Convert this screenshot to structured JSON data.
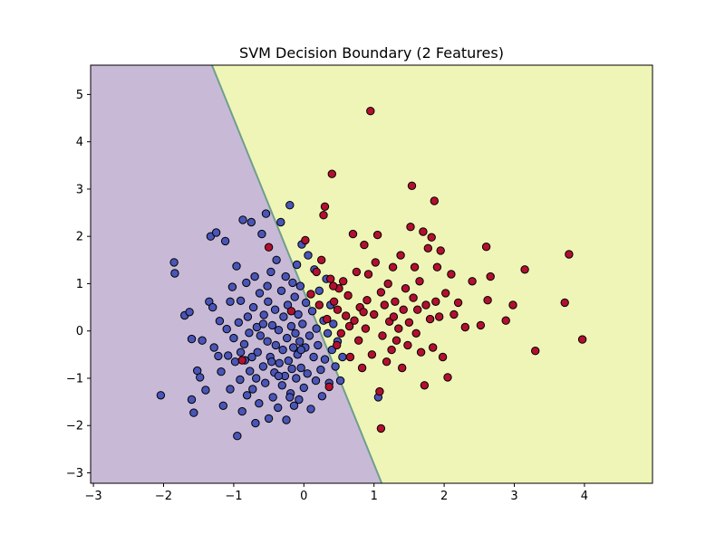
{
  "chart_data": {
    "type": "scatter",
    "title": "SVM Decision Boundary (2 Features)",
    "xlabel": "",
    "ylabel": "",
    "xlim": [
      -3.04,
      4.97
    ],
    "ylim": [
      -3.22,
      5.62
    ],
    "xticks": [
      -3,
      -2,
      -1,
      0,
      1,
      2,
      3,
      4
    ],
    "yticks": [
      -3,
      -2,
      -1,
      0,
      1,
      2,
      3,
      4,
      5
    ],
    "grid": false,
    "legend": "none",
    "decision_boundary": [
      [
        -1.31,
        5.62
      ],
      [
        1.11,
        -3.22
      ]
    ],
    "region_colors": {
      "left": "#c8bad6",
      "right": "#eff5b6"
    },
    "boundary_color": "#6f9e8e",
    "series": [
      {
        "color": "#4a55b8",
        "points": [
          [
            -2.04,
            -1.36
          ],
          [
            -1.85,
            1.45
          ],
          [
            -1.84,
            1.22
          ],
          [
            -1.7,
            0.33
          ],
          [
            -1.63,
            0.4
          ],
          [
            -1.6,
            -0.17
          ],
          [
            -1.6,
            -1.45
          ],
          [
            -1.57,
            -1.73
          ],
          [
            -1.52,
            -0.84
          ],
          [
            -1.48,
            -0.98
          ],
          [
            -1.45,
            -0.2
          ],
          [
            -1.4,
            -1.25
          ],
          [
            -1.35,
            0.62
          ],
          [
            -1.33,
            2.0
          ],
          [
            -1.3,
            0.5
          ],
          [
            -1.28,
            -0.35
          ],
          [
            -1.25,
            2.08
          ],
          [
            -1.22,
            -0.53
          ],
          [
            -1.2,
            0.21
          ],
          [
            -1.18,
            -0.86
          ],
          [
            -1.15,
            -1.58
          ],
          [
            -1.12,
            1.9
          ],
          [
            -1.1,
            0.04
          ],
          [
            -1.08,
            -0.52
          ],
          [
            -1.05,
            -1.23
          ],
          [
            -1.02,
            0.93
          ],
          [
            -1.0,
            -0.15
          ],
          [
            -0.98,
            -0.65
          ],
          [
            -0.96,
            1.37
          ],
          [
            -0.95,
            -2.22
          ],
          [
            -0.93,
            0.18
          ],
          [
            -0.91,
            -1.03
          ],
          [
            -0.9,
            0.64
          ],
          [
            -0.88,
            -1.7
          ],
          [
            -0.87,
            2.35
          ],
          [
            -0.85,
            -0.28
          ],
          [
            -0.84,
            -0.62
          ],
          [
            -0.82,
            1.02
          ],
          [
            -0.81,
            -1.36
          ],
          [
            -0.8,
            0.3
          ],
          [
            -0.78,
            -0.04
          ],
          [
            -0.77,
            -0.85
          ],
          [
            -0.75,
            2.3
          ],
          [
            -0.73,
            -1.23
          ],
          [
            -0.72,
            0.5
          ],
          [
            -0.7,
            1.15
          ],
          [
            -0.69,
            -1.95
          ],
          [
            -0.67,
            0.08
          ],
          [
            -0.66,
            -0.45
          ],
          [
            -0.64,
            -1.53
          ],
          [
            -0.63,
            0.8
          ],
          [
            -0.62,
            -0.1
          ],
          [
            -0.6,
            2.05
          ],
          [
            -0.58,
            -0.75
          ],
          [
            -0.57,
            0.34
          ],
          [
            -0.55,
            -1.1
          ],
          [
            -0.54,
            2.48
          ],
          [
            -0.52,
            -0.22
          ],
          [
            -0.51,
            0.62
          ],
          [
            -0.5,
            -1.85
          ],
          [
            -0.48,
            -0.55
          ],
          [
            -0.47,
            1.25
          ],
          [
            -0.45,
            0.12
          ],
          [
            -0.44,
            -1.4
          ],
          [
            -0.42,
            -0.88
          ],
          [
            -0.41,
            0.45
          ],
          [
            -0.4,
            -0.3
          ],
          [
            -0.39,
            1.5
          ],
          [
            -0.37,
            -1.62
          ],
          [
            -0.36,
            0.02
          ],
          [
            -0.35,
            -0.68
          ],
          [
            -0.33,
            2.3
          ],
          [
            -0.32,
            0.85
          ],
          [
            -0.31,
            -1.15
          ],
          [
            -0.3,
            -0.4
          ],
          [
            -0.29,
            0.3
          ],
          [
            -0.27,
            -0.95
          ],
          [
            -0.26,
            1.15
          ],
          [
            -0.25,
            -1.88
          ],
          [
            -0.24,
            -0.15
          ],
          [
            -0.23,
            0.55
          ],
          [
            -0.22,
            -0.63
          ],
          [
            -0.2,
            2.66
          ],
          [
            -0.19,
            -1.32
          ],
          [
            -0.18,
            0.1
          ],
          [
            -0.17,
            -0.8
          ],
          [
            -0.16,
            1.02
          ],
          [
            -0.15,
            -0.35
          ],
          [
            -0.14,
            -1.58
          ],
          [
            -0.13,
            0.72
          ],
          [
            -0.12,
            -0.05
          ],
          [
            -0.11,
            -1.0
          ],
          [
            -0.1,
            1.4
          ],
          [
            -0.09,
            -0.5
          ],
          [
            -0.08,
            0.35
          ],
          [
            -0.07,
            -1.45
          ],
          [
            -0.06,
            -0.22
          ],
          [
            -0.05,
            0.95
          ],
          [
            -0.04,
            -0.78
          ],
          [
            -0.03,
            1.83
          ],
          [
            -0.02,
            0.15
          ],
          [
            0.0,
            -1.2
          ],
          [
            0.02,
            -0.35
          ],
          [
            0.03,
            0.6
          ],
          [
            0.05,
            -0.9
          ],
          [
            0.06,
            1.6
          ],
          [
            0.08,
            -0.1
          ],
          [
            0.1,
            -1.65
          ],
          [
            0.12,
            0.42
          ],
          [
            0.14,
            -0.55
          ],
          [
            0.15,
            1.3
          ],
          [
            0.17,
            -1.05
          ],
          [
            0.18,
            0.05
          ],
          [
            0.2,
            -0.3
          ],
          [
            0.22,
            0.85
          ],
          [
            0.24,
            -0.82
          ],
          [
            0.26,
            -1.38
          ],
          [
            0.28,
            0.22
          ],
          [
            0.3,
            -0.6
          ],
          [
            0.32,
            1.1
          ],
          [
            0.34,
            -0.05
          ],
          [
            0.36,
            -1.1
          ],
          [
            0.38,
            0.55
          ],
          [
            0.4,
            -0.4
          ],
          [
            0.42,
            0.15
          ],
          [
            0.45,
            -0.75
          ],
          [
            0.48,
            -0.22
          ],
          [
            0.52,
            -1.05
          ],
          [
            0.55,
            -0.55
          ],
          [
            1.06,
            -1.4
          ],
          [
            -0.46,
            -0.65
          ],
          [
            -0.58,
            0.15
          ],
          [
            -0.74,
            -0.55
          ],
          [
            -0.9,
            -0.45
          ],
          [
            -1.05,
            0.62
          ],
          [
            -0.68,
            -1.0
          ],
          [
            -0.52,
            0.95
          ],
          [
            -0.36,
            -0.95
          ],
          [
            -0.2,
            -1.4
          ],
          [
            -0.04,
            -0.4
          ]
        ]
      },
      {
        "color": "#b2102f",
        "points": [
          [
            -0.5,
            1.77
          ],
          [
            -0.88,
            -0.62
          ],
          [
            -0.18,
            0.42
          ],
          [
            0.02,
            1.92
          ],
          [
            0.1,
            0.78
          ],
          [
            0.18,
            1.25
          ],
          [
            0.22,
            0.55
          ],
          [
            0.25,
            1.5
          ],
          [
            0.28,
            2.45
          ],
          [
            0.3,
            2.63
          ],
          [
            0.33,
            0.25
          ],
          [
            0.36,
            -1.18
          ],
          [
            0.38,
            1.1
          ],
          [
            0.4,
            3.32
          ],
          [
            0.43,
            0.62
          ],
          [
            0.47,
            -0.3
          ],
          [
            0.5,
            0.9
          ],
          [
            0.53,
            -0.05
          ],
          [
            0.56,
            1.05
          ],
          [
            0.6,
            0.32
          ],
          [
            0.63,
            0.75
          ],
          [
            0.66,
            -0.55
          ],
          [
            0.7,
            2.05
          ],
          [
            0.72,
            0.22
          ],
          [
            0.75,
            1.25
          ],
          [
            0.78,
            -0.2
          ],
          [
            0.8,
            0.5
          ],
          [
            0.83,
            -0.78
          ],
          [
            0.86,
            1.82
          ],
          [
            0.88,
            0.05
          ],
          [
            0.9,
            0.65
          ],
          [
            0.92,
            1.2
          ],
          [
            0.95,
            4.65
          ],
          [
            0.97,
            -0.5
          ],
          [
            1.0,
            0.35
          ],
          [
            1.02,
            1.45
          ],
          [
            1.05,
            2.03
          ],
          [
            1.08,
            -1.28
          ],
          [
            1.1,
            0.82
          ],
          [
            1.12,
            -0.1
          ],
          [
            1.15,
            0.55
          ],
          [
            1.18,
            -0.65
          ],
          [
            1.2,
            1.0
          ],
          [
            1.22,
            0.2
          ],
          [
            1.25,
            -0.4
          ],
          [
            1.27,
            1.35
          ],
          [
            1.3,
            0.62
          ],
          [
            1.32,
            -0.2
          ],
          [
            1.35,
            0.05
          ],
          [
            1.38,
            1.6
          ],
          [
            1.4,
            -0.78
          ],
          [
            1.42,
            0.45
          ],
          [
            1.45,
            0.9
          ],
          [
            1.48,
            -0.3
          ],
          [
            1.5,
            0.18
          ],
          [
            1.52,
            2.2
          ],
          [
            1.54,
            3.07
          ],
          [
            1.56,
            0.7
          ],
          [
            1.58,
            1.35
          ],
          [
            1.6,
            -0.05
          ],
          [
            1.62,
            0.45
          ],
          [
            1.65,
            1.05
          ],
          [
            1.67,
            -0.45
          ],
          [
            1.7,
            2.1
          ],
          [
            1.72,
            -1.15
          ],
          [
            1.74,
            0.55
          ],
          [
            1.77,
            1.75
          ],
          [
            1.8,
            0.25
          ],
          [
            1.82,
            1.98
          ],
          [
            1.84,
            -0.35
          ],
          [
            1.86,
            2.75
          ],
          [
            1.88,
            0.62
          ],
          [
            1.9,
            1.35
          ],
          [
            1.93,
            0.3
          ],
          [
            1.95,
            1.7
          ],
          [
            1.98,
            -0.55
          ],
          [
            2.02,
            0.8
          ],
          [
            2.05,
            -0.98
          ],
          [
            2.1,
            1.2
          ],
          [
            2.14,
            0.35
          ],
          [
            2.2,
            0.6
          ],
          [
            2.3,
            0.08
          ],
          [
            2.4,
            1.05
          ],
          [
            2.52,
            0.12
          ],
          [
            2.6,
            1.78
          ],
          [
            2.62,
            0.65
          ],
          [
            2.66,
            1.15
          ],
          [
            2.88,
            0.22
          ],
          [
            2.98,
            0.55
          ],
          [
            3.15,
            1.3
          ],
          [
            3.3,
            -0.42
          ],
          [
            3.72,
            0.6
          ],
          [
            3.78,
            1.62
          ],
          [
            3.97,
            -0.18
          ],
          [
            1.1,
            -2.06
          ],
          [
            0.42,
            0.95
          ],
          [
            0.48,
            0.45
          ],
          [
            0.65,
            0.1
          ],
          [
            0.85,
            0.4
          ],
          [
            1.28,
            0.3
          ]
        ]
      }
    ]
  }
}
